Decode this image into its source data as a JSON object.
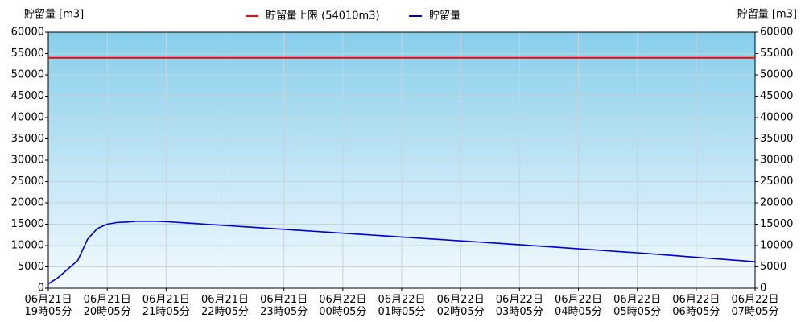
{
  "chart_data": {
    "type": "line",
    "y_label": "貯留量 [m3]",
    "y2_label": "貯留量 [m3]",
    "categories": [
      [
        "06月21日",
        "19時05分"
      ],
      null,
      null,
      null,
      null,
      null,
      [
        "06月21日",
        "20時05分"
      ],
      null,
      null,
      null,
      null,
      null,
      [
        "06月21日",
        "21時05分"
      ],
      null,
      null,
      null,
      null,
      null,
      [
        "06月21日",
        "22時05分"
      ],
      null,
      null,
      null,
      null,
      null,
      [
        "06月21日",
        "23時05分"
      ],
      null,
      null,
      null,
      null,
      null,
      [
        "06月22日",
        "00時05分"
      ],
      null,
      null,
      null,
      null,
      null,
      [
        "06月22日",
        "01時05分"
      ],
      null,
      null,
      null,
      null,
      null,
      [
        "06月22日",
        "02時05分"
      ],
      null,
      null,
      null,
      null,
      null,
      [
        "06月22日",
        "03時05分"
      ],
      null,
      null,
      null,
      null,
      null,
      [
        "06月22日",
        "04時05分"
      ],
      null,
      null,
      null,
      null,
      null,
      [
        "06月22日",
        "05時05分"
      ],
      null,
      null,
      null,
      null,
      null,
      [
        "06月22日",
        "06時05分"
      ],
      null,
      null,
      null,
      null,
      null,
      [
        "06月22日",
        "07時05分"
      ]
    ],
    "series": [
      {
        "name": "貯留量",
        "color": "#0000cc",
        "values": [
          1000,
          2500,
          4500,
          6500,
          11500,
          14000,
          15000,
          15400,
          15500,
          15700,
          15700,
          15700,
          15600,
          15450,
          15300,
          15150,
          15000,
          14850,
          14700,
          14550,
          14400,
          14250,
          14100,
          13950,
          13800,
          13650,
          13500,
          13350,
          13200,
          13050,
          12900,
          12750,
          12600,
          12450,
          12300,
          12150,
          12000,
          11850,
          11700,
          11550,
          11400,
          11250,
          11100,
          10950,
          10800,
          10650,
          10500,
          10350,
          10200,
          10040,
          9880,
          9720,
          9560,
          9400,
          9240,
          9080,
          8920,
          8760,
          8600,
          8440,
          8300,
          8125,
          7950,
          7775,
          7600,
          7425,
          7250,
          7075,
          6900,
          6725,
          6550,
          6375,
          6200
        ]
      }
    ],
    "reference_lines": [
      {
        "name": "貯留量上限 (54010m3)",
        "color": "#ff0000",
        "value": 54010
      }
    ],
    "ylim": [
      0,
      60000
    ],
    "yticks": [
      0,
      5000,
      10000,
      15000,
      20000,
      25000,
      30000,
      35000,
      40000,
      45000,
      50000,
      55000,
      60000
    ],
    "y2lim": [
      0,
      60000
    ],
    "y2ticks": [
      0,
      5000,
      10000,
      15000,
      20000,
      25000,
      30000,
      35000,
      40000,
      45000,
      50000,
      55000,
      60000
    ],
    "grid": true
  }
}
